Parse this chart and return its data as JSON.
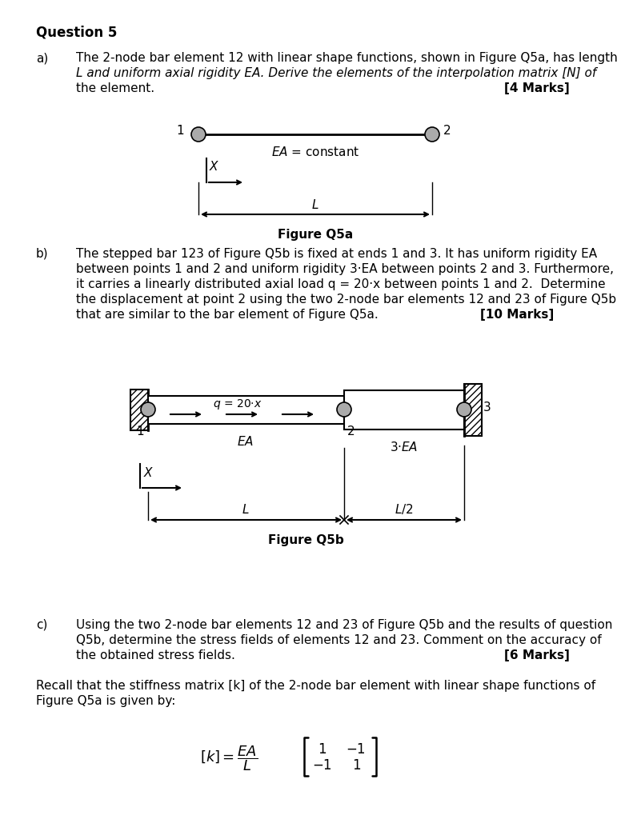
{
  "bg_color": "#ffffff",
  "title": "Question 5",
  "part_a_label": "a)",
  "part_a_lines": [
    "The 2-node bar element 12 with linear shape functions, shown in Figure Q5a, has length",
    "L and uniform axial rigidity EA. Derive the elements of the interpolation matrix [N] of",
    "the element."
  ],
  "part_a_marks": "[4 Marks]",
  "figQ5a_caption": "Figure Q5a",
  "part_b_label": "b)",
  "part_b_lines": [
    "The stepped bar 123 of Figure Q5b is fixed at ends 1 and 3. It has uniform rigidity EA",
    "between points 1 and 2 and uniform rigidity 3·EA between points 2 and 3. Furthermore,",
    "it carries a linearly distributed axial load q = 20·x between points 1 and 2.  Determine",
    "the displacement at point 2 using the two 2-node bar elements 12 and 23 of Figure Q5b",
    "that are similar to the bar element of Figure Q5a."
  ],
  "part_b_marks": "[10 Marks]",
  "figQ5b_caption": "Figure Q5b",
  "part_c_label": "c)",
  "part_c_lines": [
    "Using the two 2-node bar elements 12 and 23 of Figure Q5b and the results of question",
    "Q5b, determine the stress fields of elements 12 and 23. Comment on the accuracy of",
    "the obtained stress fields."
  ],
  "part_c_marks": "[6 Marks]",
  "recall_lines": [
    "Recall that the stiffness matrix [k] of the 2-node bar element with linear shape functions of",
    "Figure Q5a is given by:"
  ],
  "node_color": "#999999",
  "hatch_color": "#000000",
  "bar_color": "#ffffff"
}
